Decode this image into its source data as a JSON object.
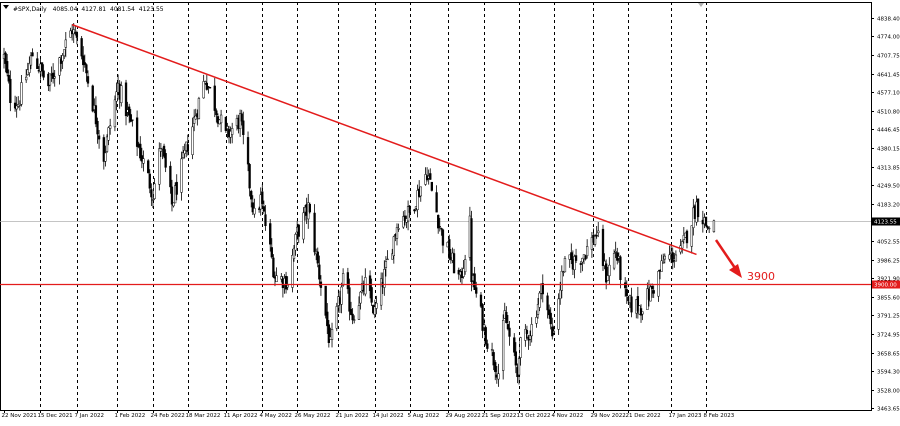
{
  "chart_data": {
    "type": "candlestick",
    "symbol_line": {
      "symbol": "#SPX,Daily",
      "open": "4085.04",
      "high": "4127.81",
      "low": "4081.54",
      "close": "4123.55"
    },
    "x_dates": [
      "22 Nov 2021",
      "15 Dec 2021",
      "7 Jan 2022",
      "1 Feb 2022",
      "24 Feb 2022",
      "18 Mar 2022",
      "11 Apr 2022",
      "4 May 2022",
      "26 May 2022",
      "21 Jun 2022",
      "14 Jul 2022",
      "5 Aug 2022",
      "29 Aug 2022",
      "21 Sep 2022",
      "13 Oct 2022",
      "4 Nov 2022",
      "29 Nov 2022",
      "21 Dec 2022",
      "17 Jan 2023",
      "8 Feb 2023"
    ],
    "y_ticks": [
      "4838.40",
      "4774.00",
      "4707.75",
      "4641.45",
      "4577.10",
      "4510.80",
      "4446.45",
      "4380.15",
      "4313.85",
      "4249.50",
      "4183.20",
      "4052.55",
      "3986.25",
      "3921.90",
      "3855.60",
      "3791.25",
      "3724.95",
      "3658.65",
      "3594.30",
      "3528.00",
      "3463.65"
    ],
    "ylim": [
      3463.65,
      4870
    ],
    "current_price": "4123.55",
    "support_level": 3900,
    "support_label": "3900.00",
    "target_annotation": "3900",
    "trendline": {
      "start": {
        "date": "4 Jan 2022",
        "price": 4815
      },
      "end": {
        "date": "2 Feb 2023",
        "price": 4005
      }
    },
    "anchors": [
      {
        "date": "22 Nov 2021",
        "price": 4700
      },
      {
        "date": "26 Nov 2021",
        "price": 4560
      },
      {
        "date": "1 Dec 2021",
        "price": 4540
      },
      {
        "date": "10 Dec 2021",
        "price": 4710
      },
      {
        "date": "20 Dec 2021",
        "price": 4600
      },
      {
        "date": "4 Jan 2022",
        "price": 4800
      },
      {
        "date": "11 Jan 2022",
        "price": 4700
      },
      {
        "date": "24 Jan 2022",
        "price": 4350
      },
      {
        "date": "2 Feb 2022",
        "price": 4600
      },
      {
        "date": "14 Feb 2022",
        "price": 4400
      },
      {
        "date": "24 Feb 2022",
        "price": 4220
      },
      {
        "date": "1 Mar 2022",
        "price": 4390
      },
      {
        "date": "8 Mar 2022",
        "price": 4180
      },
      {
        "date": "29 Mar 2022",
        "price": 4630
      },
      {
        "date": "11 Apr 2022",
        "price": 4420
      },
      {
        "date": "20 Apr 2022",
        "price": 4480
      },
      {
        "date": "29 Apr 2022",
        "price": 4140
      },
      {
        "date": "3 May 2022",
        "price": 4200
      },
      {
        "date": "12 May 2022",
        "price": 3930
      },
      {
        "date": "20 May 2022",
        "price": 3910
      },
      {
        "date": "26 May 2022",
        "price": 4080
      },
      {
        "date": "2 Jun 2022",
        "price": 4170
      },
      {
        "date": "10 Jun 2022",
        "price": 3900
      },
      {
        "date": "16 Jun 2022",
        "price": 3680
      },
      {
        "date": "24 Jun 2022",
        "price": 3910
      },
      {
        "date": "30 Jun 2022",
        "price": 3790
      },
      {
        "date": "8 Jul 2022",
        "price": 3900
      },
      {
        "date": "14 Jul 2022",
        "price": 3800
      },
      {
        "date": "29 Jul 2022",
        "price": 4130
      },
      {
        "date": "5 Aug 2022",
        "price": 4150
      },
      {
        "date": "16 Aug 2022",
        "price": 4300
      },
      {
        "date": "26 Aug 2022",
        "price": 4060
      },
      {
        "date": "6 Sep 2022",
        "price": 3910
      },
      {
        "date": "12 Sep 2022",
        "price": 4110
      },
      {
        "date": "13 Sep 2022",
        "price": 3930
      },
      {
        "date": "23 Sep 2022",
        "price": 3700
      },
      {
        "date": "30 Sep 2022",
        "price": 3590
      },
      {
        "date": "4 Oct 2022",
        "price": 3790
      },
      {
        "date": "12 Oct 2022",
        "price": 3580
      },
      {
        "date": "13 Oct 2022",
        "price": 3670
      },
      {
        "date": "21 Oct 2022",
        "price": 3750
      },
      {
        "date": "28 Oct 2022",
        "price": 3900
      },
      {
        "date": "3 Nov 2022",
        "price": 3720
      },
      {
        "date": "10 Nov 2022",
        "price": 3960
      },
      {
        "date": "22 Nov 2022",
        "price": 4000
      },
      {
        "date": "1 Dec 2022",
        "price": 4080
      },
      {
        "date": "7 Dec 2022",
        "price": 3930
      },
      {
        "date": "13 Dec 2022",
        "price": 4020
      },
      {
        "date": "20 Dec 2022",
        "price": 3830
      },
      {
        "date": "29 Dec 2022",
        "price": 3820
      },
      {
        "date": "6 Jan 2023",
        "price": 3890
      },
      {
        "date": "13 Jan 2023",
        "price": 3990
      },
      {
        "date": "23 Jan 2023",
        "price": 4010
      },
      {
        "date": "2 Feb 2023",
        "price": 4180
      },
      {
        "date": "9 Feb 2023",
        "price": 4100
      },
      {
        "date": "13 Feb 2023",
        "price": 4123
      }
    ],
    "colors": {
      "candle": "#000000",
      "trendline": "#e31c1c",
      "support": "#e31c1c",
      "arrow": "#e31c1c",
      "grid": "#000000",
      "current_price_line": "#b0b0b0"
    }
  }
}
